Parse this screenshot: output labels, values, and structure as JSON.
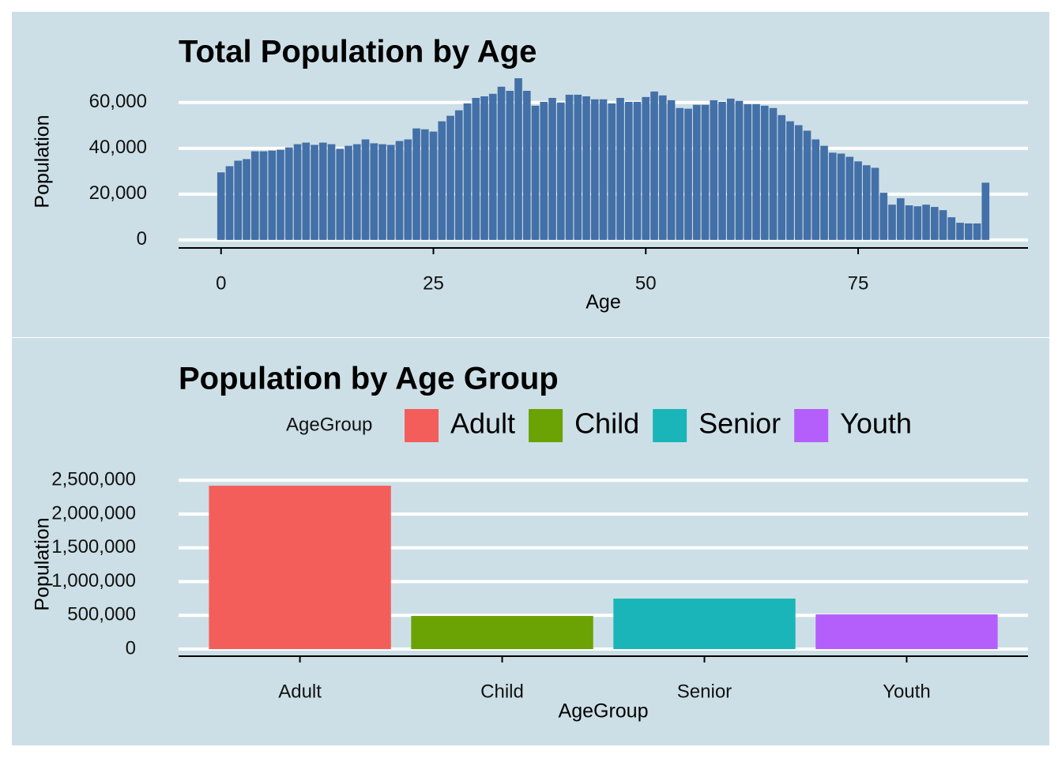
{
  "chart_data": [
    {
      "type": "histbar",
      "title": "Total Population by Age",
      "xlabel": "Age",
      "ylabel": "Population",
      "color": "#4470a8",
      "grid": true,
      "x": [
        0,
        1,
        2,
        3,
        4,
        5,
        6,
        7,
        8,
        9,
        10,
        11,
        12,
        13,
        14,
        15,
        16,
        17,
        18,
        19,
        20,
        21,
        22,
        23,
        24,
        25,
        26,
        27,
        28,
        29,
        30,
        31,
        32,
        33,
        34,
        35,
        36,
        37,
        38,
        39,
        40,
        41,
        42,
        43,
        44,
        45,
        46,
        47,
        48,
        49,
        50,
        51,
        52,
        53,
        54,
        55,
        56,
        57,
        58,
        59,
        60,
        61,
        62,
        63,
        64,
        65,
        66,
        67,
        68,
        69,
        70,
        71,
        72,
        73,
        74,
        75,
        76,
        77,
        78,
        79,
        80,
        81,
        82,
        83,
        84,
        85,
        86,
        87,
        88,
        89,
        90
      ],
      "values": [
        29500,
        32200,
        34600,
        35300,
        38700,
        38700,
        39000,
        39400,
        40400,
        41800,
        42500,
        41500,
        42500,
        41800,
        39800,
        41100,
        41800,
        43900,
        42200,
        41800,
        41500,
        43200,
        43900,
        48700,
        48300,
        47300,
        51800,
        54200,
        56600,
        59600,
        62000,
        62700,
        63800,
        66900,
        65100,
        70600,
        65100,
        58600,
        60300,
        62000,
        60000,
        63400,
        63400,
        62700,
        61400,
        61400,
        59600,
        62000,
        60300,
        60300,
        62400,
        64800,
        63100,
        61000,
        57600,
        57300,
        59000,
        59000,
        61000,
        60300,
        61700,
        60700,
        59300,
        59300,
        58600,
        57600,
        54500,
        51800,
        50100,
        47700,
        43900,
        41100,
        38100,
        37700,
        36300,
        34300,
        32600,
        31500,
        20600,
        15400,
        18200,
        15100,
        14700,
        15400,
        14400,
        13000,
        9900,
        7500,
        7200,
        7200,
        25000
      ],
      "xlim": [
        -5,
        95
      ],
      "xticks": [
        0,
        25,
        50,
        75
      ],
      "ylim": [
        -3500,
        72000
      ],
      "yticks": [
        0,
        {
          "value": 20000,
          "label": "20,000"
        },
        {
          "value": 40000,
          "label": "40,000"
        },
        {
          "value": 60000,
          "label": "60,000"
        }
      ]
    },
    {
      "type": "bar",
      "title": "Population by Age Group",
      "xlabel": "AgeGroup",
      "ylabel": "Population",
      "legend_title": "AgeGroup",
      "legend": "top",
      "grid": true,
      "categories": [
        "Adult",
        "Child",
        "Senior",
        "Youth"
      ],
      "values": [
        2420000,
        491000,
        748000,
        514000
      ],
      "colors": [
        "#f35e5a",
        "#6ba204",
        "#19b5b9",
        "#b45ffb"
      ],
      "ylim": [
        -105000,
        2620000
      ],
      "yticks": [
        0,
        {
          "value": 500000,
          "label": "500,000"
        },
        {
          "value": 1000000,
          "label": "1,000,000"
        },
        {
          "value": 1500000,
          "label": "1,500,000"
        },
        {
          "value": 2000000,
          "label": "2,000,000"
        },
        {
          "value": 2500000,
          "label": "2,500,000"
        }
      ]
    }
  ]
}
